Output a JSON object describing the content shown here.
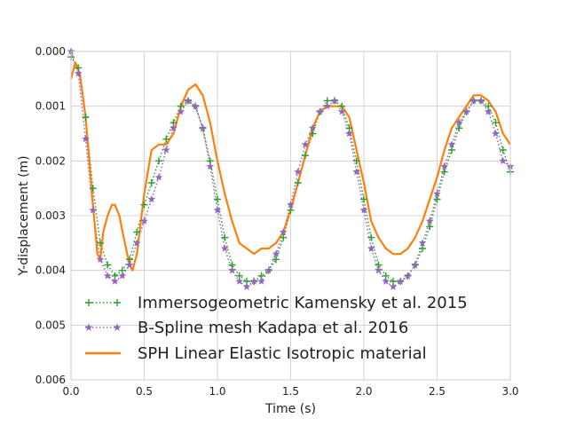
{
  "chart_data": {
    "type": "line",
    "xlabel": "Time (s)",
    "ylabel": "Y-displacement (m)",
    "xlim": [
      0.0,
      3.0
    ],
    "ylim": [
      0.006,
      0.0
    ],
    "y_axis_inverted": true,
    "grid": true,
    "legend_position": "lower-left",
    "x_ticks": [
      "0.0",
      "0.5",
      "1.0",
      "1.5",
      "2.0",
      "2.5",
      "3.0"
    ],
    "x_tick_values": [
      0.0,
      0.5,
      1.0,
      1.5,
      2.0,
      2.5,
      3.0
    ],
    "y_ticks": [
      "0.000",
      "0.001",
      "0.002",
      "0.003",
      "0.004",
      "0.005",
      "0.006"
    ],
    "y_tick_values": [
      0.0,
      0.001,
      0.002,
      0.003,
      0.004,
      0.005,
      0.006
    ],
    "series": [
      {
        "name": "Immersogeometric Kamensky et al. 2015",
        "color": "#2ca02c",
        "line_style": "dotted",
        "marker": "plus",
        "x": [
          0.0,
          0.05,
          0.1,
          0.15,
          0.2,
          0.25,
          0.3,
          0.35,
          0.4,
          0.45,
          0.5,
          0.55,
          0.6,
          0.65,
          0.7,
          0.75,
          0.8,
          0.85,
          0.9,
          0.95,
          1.0,
          1.05,
          1.1,
          1.15,
          1.2,
          1.25,
          1.3,
          1.35,
          1.4,
          1.45,
          1.5,
          1.55,
          1.6,
          1.65,
          1.7,
          1.75,
          1.8,
          1.85,
          1.9,
          1.95,
          2.0,
          2.05,
          2.1,
          2.15,
          2.2,
          2.25,
          2.3,
          2.35,
          2.4,
          2.45,
          2.5,
          2.55,
          2.6,
          2.65,
          2.7,
          2.75,
          2.8,
          2.85,
          2.9,
          2.95,
          3.0
        ],
        "y": [
          0.0001,
          0.0003,
          0.0012,
          0.0025,
          0.0035,
          0.0039,
          0.0041,
          0.004,
          0.0038,
          0.0033,
          0.0028,
          0.0024,
          0.002,
          0.0016,
          0.0013,
          0.001,
          0.0009,
          0.001,
          0.0014,
          0.002,
          0.0027,
          0.0034,
          0.0039,
          0.0041,
          0.0042,
          0.0042,
          0.0041,
          0.004,
          0.0038,
          0.0034,
          0.0029,
          0.0024,
          0.0019,
          0.0015,
          0.0011,
          0.0009,
          0.0009,
          0.001,
          0.0014,
          0.002,
          0.0027,
          0.0034,
          0.0039,
          0.0041,
          0.0042,
          0.0042,
          0.0041,
          0.0039,
          0.0036,
          0.0032,
          0.0027,
          0.0022,
          0.0018,
          0.0014,
          0.0011,
          0.0009,
          0.0009,
          0.001,
          0.0013,
          0.0018,
          0.0022
        ]
      },
      {
        "name": "B-Spline mesh Kadapa et al. 2016",
        "color": "#9467bd",
        "line_style": "dotted",
        "marker": "star",
        "x": [
          0.0,
          0.05,
          0.1,
          0.15,
          0.2,
          0.25,
          0.3,
          0.35,
          0.4,
          0.45,
          0.5,
          0.55,
          0.6,
          0.65,
          0.7,
          0.75,
          0.8,
          0.85,
          0.9,
          0.95,
          1.0,
          1.05,
          1.1,
          1.15,
          1.2,
          1.25,
          1.3,
          1.35,
          1.4,
          1.45,
          1.5,
          1.55,
          1.6,
          1.65,
          1.7,
          1.75,
          1.8,
          1.85,
          1.9,
          1.95,
          2.0,
          2.05,
          2.1,
          2.15,
          2.2,
          2.25,
          2.3,
          2.35,
          2.4,
          2.45,
          2.5,
          2.55,
          2.6,
          2.65,
          2.7,
          2.75,
          2.8,
          2.85,
          2.9,
          2.95,
          3.0
        ],
        "y": [
          0.0,
          0.0004,
          0.0016,
          0.0029,
          0.0038,
          0.0041,
          0.0042,
          0.0041,
          0.0039,
          0.0035,
          0.0031,
          0.0027,
          0.0023,
          0.0018,
          0.0014,
          0.0011,
          0.0009,
          0.001,
          0.0014,
          0.0021,
          0.0029,
          0.0036,
          0.004,
          0.0042,
          0.0043,
          0.0042,
          0.0042,
          0.004,
          0.0037,
          0.0033,
          0.0028,
          0.0022,
          0.0017,
          0.0014,
          0.0011,
          0.001,
          0.0009,
          0.0011,
          0.0015,
          0.0022,
          0.0029,
          0.0036,
          0.004,
          0.0042,
          0.0043,
          0.0042,
          0.0041,
          0.0039,
          0.0035,
          0.0031,
          0.0026,
          0.0021,
          0.0017,
          0.0013,
          0.0011,
          0.0009,
          0.0009,
          0.0011,
          0.0015,
          0.002,
          0.0021
        ]
      },
      {
        "name": "SPH Linear Elastic Isotropic material",
        "color": "#ff7f0e",
        "line_style": "solid",
        "marker": "none",
        "x": [
          0.0,
          0.03,
          0.06,
          0.1,
          0.14,
          0.18,
          0.2,
          0.22,
          0.25,
          0.28,
          0.3,
          0.33,
          0.36,
          0.4,
          0.42,
          0.45,
          0.5,
          0.55,
          0.6,
          0.65,
          0.7,
          0.75,
          0.8,
          0.85,
          0.9,
          0.95,
          1.0,
          1.05,
          1.1,
          1.15,
          1.2,
          1.25,
          1.3,
          1.35,
          1.4,
          1.45,
          1.5,
          1.55,
          1.6,
          1.65,
          1.7,
          1.75,
          1.8,
          1.85,
          1.9,
          1.95,
          2.0,
          2.05,
          2.1,
          2.15,
          2.2,
          2.25,
          2.3,
          2.35,
          2.4,
          2.45,
          2.5,
          2.55,
          2.6,
          2.65,
          2.7,
          2.75,
          2.8,
          2.85,
          2.9,
          2.95,
          3.0
        ],
        "y": [
          0.0005,
          0.0002,
          0.0004,
          0.0012,
          0.0025,
          0.0037,
          0.0038,
          0.0033,
          0.003,
          0.0028,
          0.0028,
          0.003,
          0.0034,
          0.0039,
          0.004,
          0.0037,
          0.0026,
          0.0018,
          0.0017,
          0.0017,
          0.0015,
          0.001,
          0.0007,
          0.0006,
          0.0008,
          0.0013,
          0.002,
          0.0026,
          0.0031,
          0.0035,
          0.0036,
          0.0037,
          0.0036,
          0.0036,
          0.0035,
          0.0033,
          0.0029,
          0.0024,
          0.0019,
          0.0014,
          0.0011,
          0.001,
          0.001,
          0.001,
          0.0012,
          0.0018,
          0.0024,
          0.0031,
          0.0034,
          0.0036,
          0.0037,
          0.0037,
          0.0036,
          0.0034,
          0.0031,
          0.0027,
          0.0023,
          0.0018,
          0.0014,
          0.0012,
          0.001,
          0.0008,
          0.0008,
          0.0009,
          0.0011,
          0.0015,
          0.0017
        ]
      }
    ]
  }
}
